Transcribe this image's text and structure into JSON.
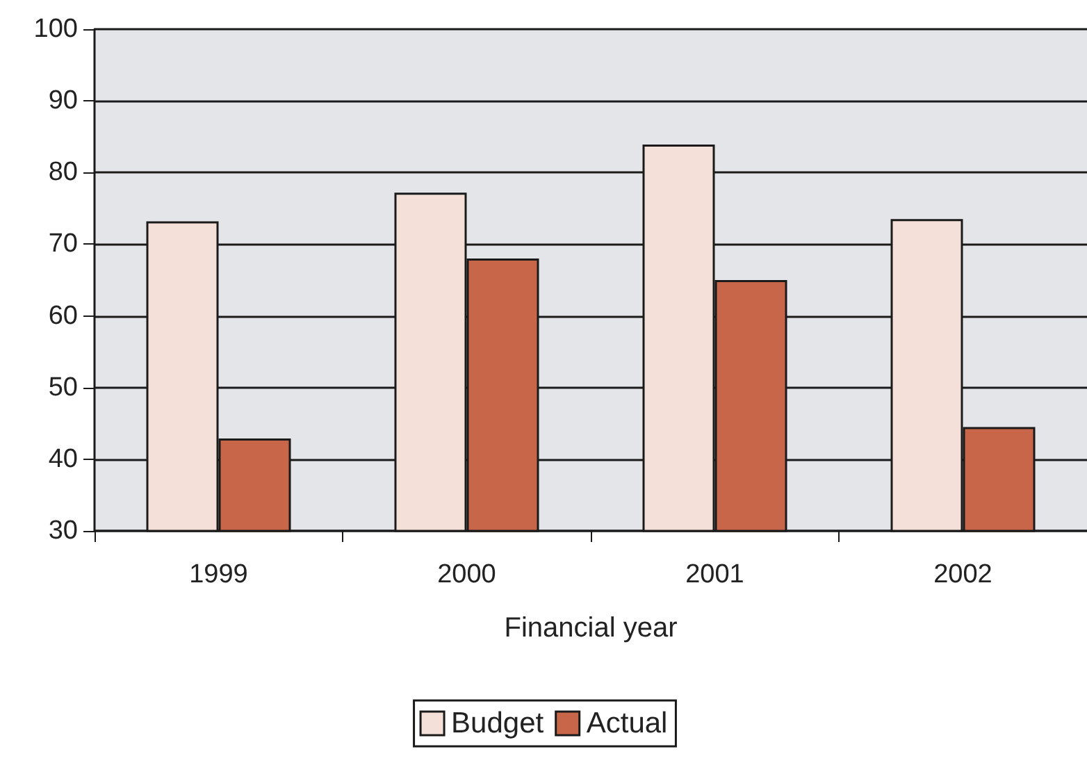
{
  "chart_data": {
    "type": "bar",
    "xlabel": "Financial year",
    "categories": [
      "1999",
      "2000",
      "2001",
      "2002"
    ],
    "series": [
      {
        "name": "Budget",
        "color": "#f4e0d8",
        "values": [
          73.2,
          77.2,
          83.9,
          73.5
        ]
      },
      {
        "name": "Actual",
        "color": "#c8664a",
        "values": [
          42.9,
          68.0,
          65.0,
          44.5
        ]
      }
    ],
    "ylim": [
      30,
      100
    ],
    "yticks": [
      30,
      40,
      50,
      60,
      70,
      80,
      90,
      100
    ],
    "grid": "y",
    "legend": "bottom"
  }
}
